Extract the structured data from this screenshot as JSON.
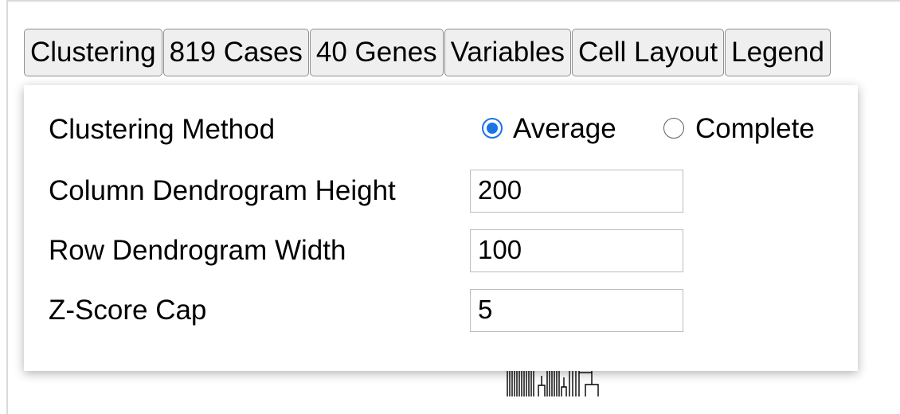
{
  "tabs": [
    {
      "label": "Clustering"
    },
    {
      "label": "819 Cases"
    },
    {
      "label": "40 Genes"
    },
    {
      "label": "Variables"
    },
    {
      "label": "Cell Layout"
    },
    {
      "label": "Legend"
    }
  ],
  "panel": {
    "clustering_method": {
      "label": "Clustering Method",
      "options": [
        {
          "label": "Average",
          "checked": true
        },
        {
          "label": "Complete",
          "checked": false
        }
      ]
    },
    "column_dendrogram_height": {
      "label": "Column Dendrogram Height",
      "value": "200"
    },
    "row_dendrogram_width": {
      "label": "Row Dendrogram Width",
      "value": "100"
    },
    "zscore_cap": {
      "label": "Z-Score Cap",
      "value": "5"
    }
  },
  "colors": {
    "radio_accent": "#1a73e8",
    "tab_background": "#efefef",
    "tab_border": "#8f8f8f"
  }
}
